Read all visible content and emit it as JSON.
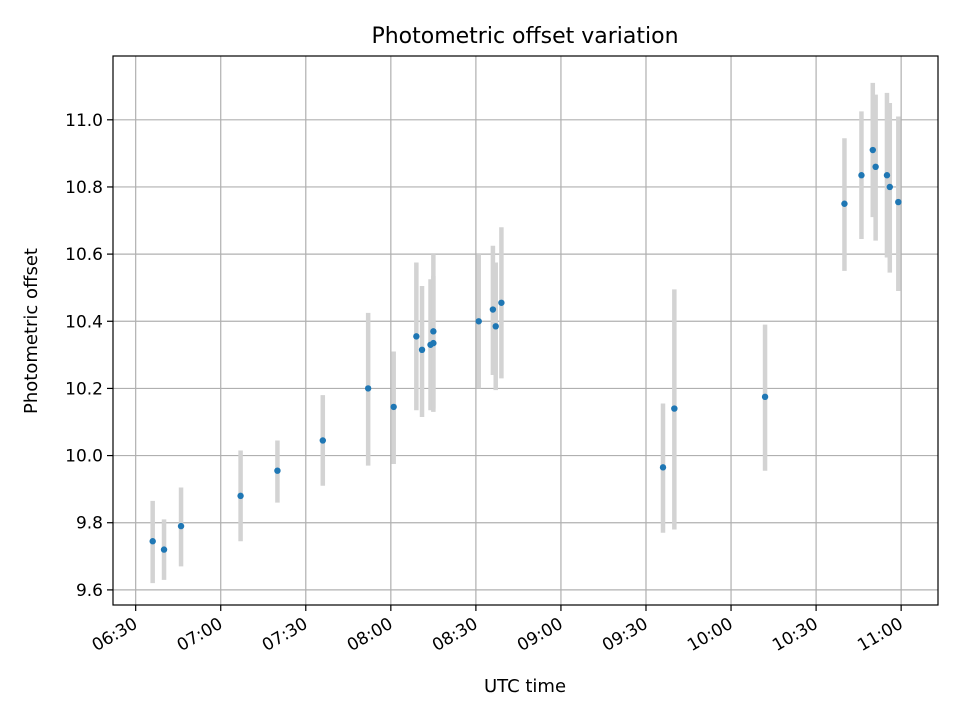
{
  "chart_data": {
    "type": "scatter",
    "title": "Photometric offset variation",
    "xlabel": "UTC time",
    "ylabel": "Photometric offset",
    "xlim": [
      "06:22",
      "11:13"
    ],
    "ylim": [
      9.555,
      11.19
    ],
    "x_ticks": [
      "06:30",
      "07:00",
      "07:30",
      "08:00",
      "08:30",
      "09:00",
      "09:30",
      "10:00",
      "10:30",
      "11:00"
    ],
    "y_ticks": [
      9.6,
      9.8,
      10.0,
      10.2,
      10.4,
      10.6,
      10.8,
      11.0
    ],
    "y_tick_labels": [
      "9.6",
      "9.8",
      "10.0",
      "10.2",
      "10.4",
      "10.6",
      "10.8",
      "11.0"
    ],
    "grid": true,
    "point_color": "#1f77b4",
    "errorbar_color": "#d3d3d3",
    "points": [
      {
        "x": "06:36",
        "y": 9.745,
        "err_low": 9.62,
        "err_high": 9.865
      },
      {
        "x": "06:40",
        "y": 9.72,
        "err_low": 9.63,
        "err_high": 9.81
      },
      {
        "x": "06:46",
        "y": 9.79,
        "err_low": 9.67,
        "err_high": 9.905
      },
      {
        "x": "07:07",
        "y": 9.88,
        "err_low": 9.745,
        "err_high": 10.015
      },
      {
        "x": "07:20",
        "y": 9.955,
        "err_low": 9.86,
        "err_high": 10.045
      },
      {
        "x": "07:36",
        "y": 10.045,
        "err_low": 9.91,
        "err_high": 10.18
      },
      {
        "x": "07:52",
        "y": 10.2,
        "err_low": 9.97,
        "err_high": 10.425
      },
      {
        "x": "08:01",
        "y": 10.145,
        "err_low": 9.975,
        "err_high": 10.31
      },
      {
        "x": "08:09",
        "y": 10.355,
        "err_low": 10.135,
        "err_high": 10.575
      },
      {
        "x": "08:11",
        "y": 10.315,
        "err_low": 10.115,
        "err_high": 10.505
      },
      {
        "x": "08:14",
        "y": 10.33,
        "err_low": 10.135,
        "err_high": 10.525
      },
      {
        "x": "08:15",
        "y": 10.37,
        "err_low": 10.14,
        "err_high": 10.6
      },
      {
        "x": "08:15",
        "y": 10.335,
        "err_low": 10.13,
        "err_high": 10.535
      },
      {
        "x": "08:31",
        "y": 10.4,
        "err_low": 10.2,
        "err_high": 10.6
      },
      {
        "x": "08:36",
        "y": 10.435,
        "err_low": 10.24,
        "err_high": 10.625
      },
      {
        "x": "08:37",
        "y": 10.385,
        "err_low": 10.195,
        "err_high": 10.575
      },
      {
        "x": "08:39",
        "y": 10.455,
        "err_low": 10.23,
        "err_high": 10.68
      },
      {
        "x": "09:36",
        "y": 9.965,
        "err_low": 9.77,
        "err_high": 10.155
      },
      {
        "x": "09:40",
        "y": 10.14,
        "err_low": 9.78,
        "err_high": 10.495
      },
      {
        "x": "10:12",
        "y": 10.175,
        "err_low": 9.955,
        "err_high": 10.39
      },
      {
        "x": "10:40",
        "y": 10.75,
        "err_low": 10.55,
        "err_high": 10.945
      },
      {
        "x": "10:46",
        "y": 10.835,
        "err_low": 10.645,
        "err_high": 11.025
      },
      {
        "x": "10:50",
        "y": 10.91,
        "err_low": 10.71,
        "err_high": 11.11
      },
      {
        "x": "10:51",
        "y": 10.86,
        "err_low": 10.64,
        "err_high": 11.075
      },
      {
        "x": "10:55",
        "y": 10.835,
        "err_low": 10.59,
        "err_high": 11.08
      },
      {
        "x": "10:56",
        "y": 10.8,
        "err_low": 10.545,
        "err_high": 11.05
      },
      {
        "x": "10:59",
        "y": 10.755,
        "err_low": 10.49,
        "err_high": 11.01
      }
    ]
  }
}
